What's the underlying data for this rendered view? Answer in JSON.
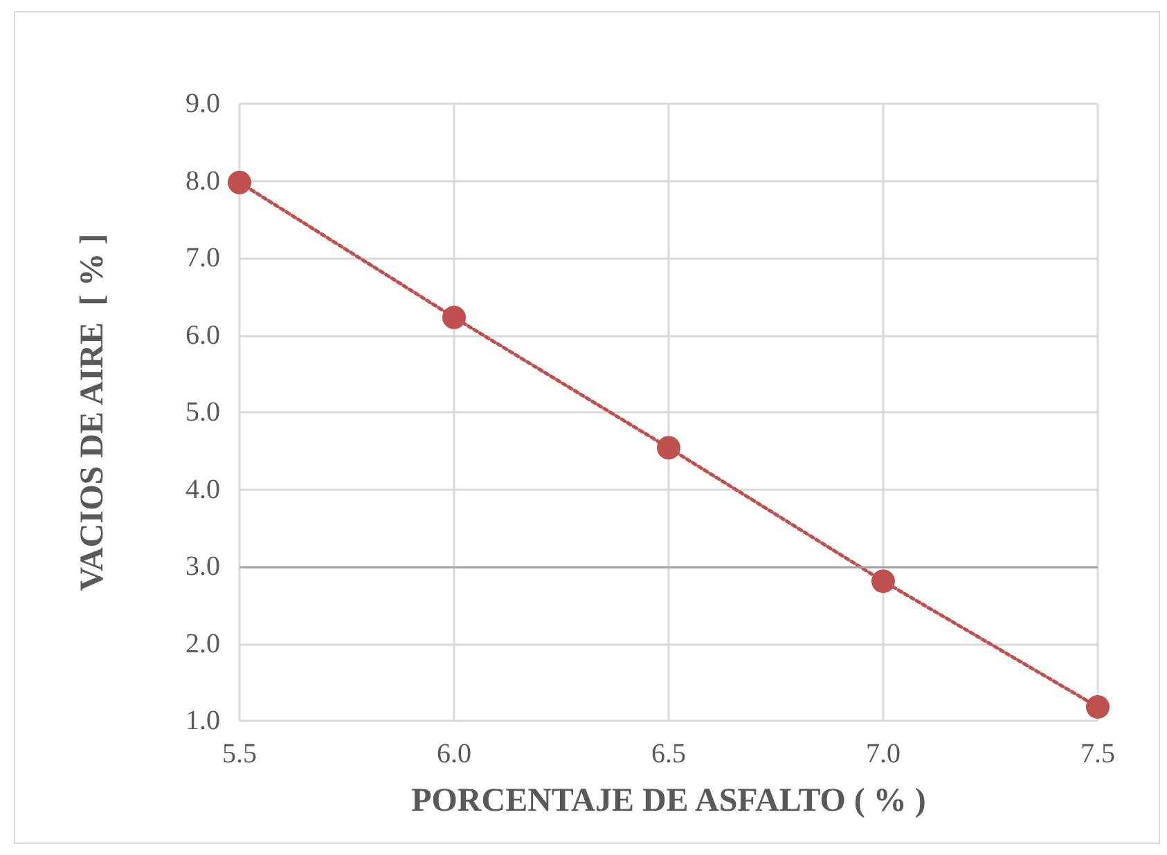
{
  "chart_data": {
    "type": "line",
    "xlabel": "PORCENTAJE DE ASFALTO ( % )",
    "ylabel": "VACIOS DE AIRE  [ % ]",
    "x": [
      5.5,
      6.0,
      6.5,
      7.0,
      7.5
    ],
    "series": [
      {
        "color": "#c0504d",
        "values": [
          7.98,
          6.23,
          4.54,
          2.81,
          1.18
        ]
      }
    ],
    "xlim": [
      5.5,
      7.5
    ],
    "xticks": [
      {
        "value": 5.5,
        "label": "5.5"
      },
      {
        "value": 6,
        "label": "6.0"
      },
      {
        "value": 6.5,
        "label": "6.5"
      },
      {
        "value": 7,
        "label": "7.0"
      },
      {
        "value": 7.5,
        "label": "7.5"
      }
    ],
    "ylim": [
      1,
      9
    ],
    "yticks": [
      {
        "value": 1,
        "label": "1.0"
      },
      {
        "value": 2,
        "label": "2.0"
      },
      {
        "value": 3,
        "label": "3.0"
      },
      {
        "value": 4,
        "label": "4.0"
      },
      {
        "value": 5,
        "label": "5.0"
      },
      {
        "value": 6,
        "label": "6.0"
      },
      {
        "value": 7,
        "label": "7.0"
      },
      {
        "value": 8,
        "label": "8.0"
      },
      {
        "value": 9,
        "label": "9.0"
      }
    ],
    "ref_lines": [
      {
        "axis": "y",
        "value": 3,
        "color": "#a6a6a6"
      }
    ],
    "grid": true,
    "marker": "circle",
    "line_style": "dotted"
  }
}
